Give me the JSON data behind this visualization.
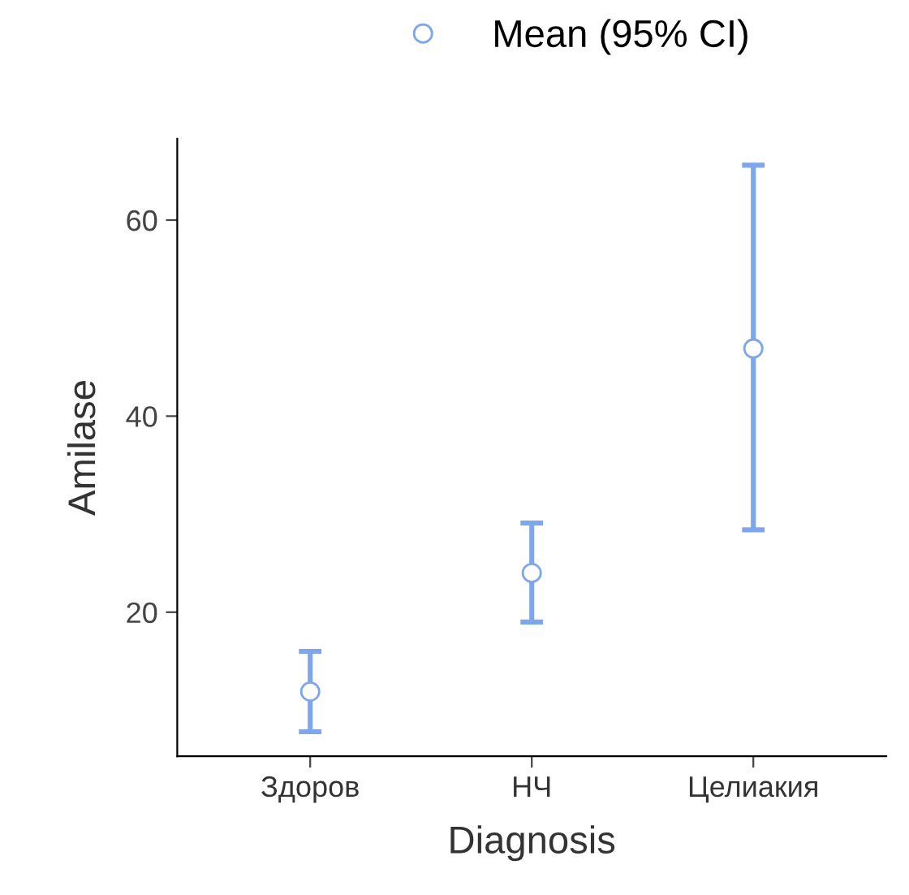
{
  "chart_data": {
    "type": "scatter",
    "xlabel": "Diagnosis",
    "ylabel": "Amilase",
    "categories": [
      "Здоров",
      "НЧ",
      "Целиакия"
    ],
    "series": [
      {
        "name": "Mean (95% CI)",
        "color": "#7ea6ea",
        "values": [
          11.9,
          24.0,
          46.9
        ],
        "errors": [
          [
            7.8,
            16.0
          ],
          [
            19.0,
            29.1
          ],
          [
            28.4,
            65.6
          ]
        ]
      }
    ],
    "ylim": [
      5.3,
      68.3
    ],
    "yticks": [
      20,
      40,
      60
    ],
    "grid": false,
    "legend": "top",
    "marker": "circle"
  }
}
